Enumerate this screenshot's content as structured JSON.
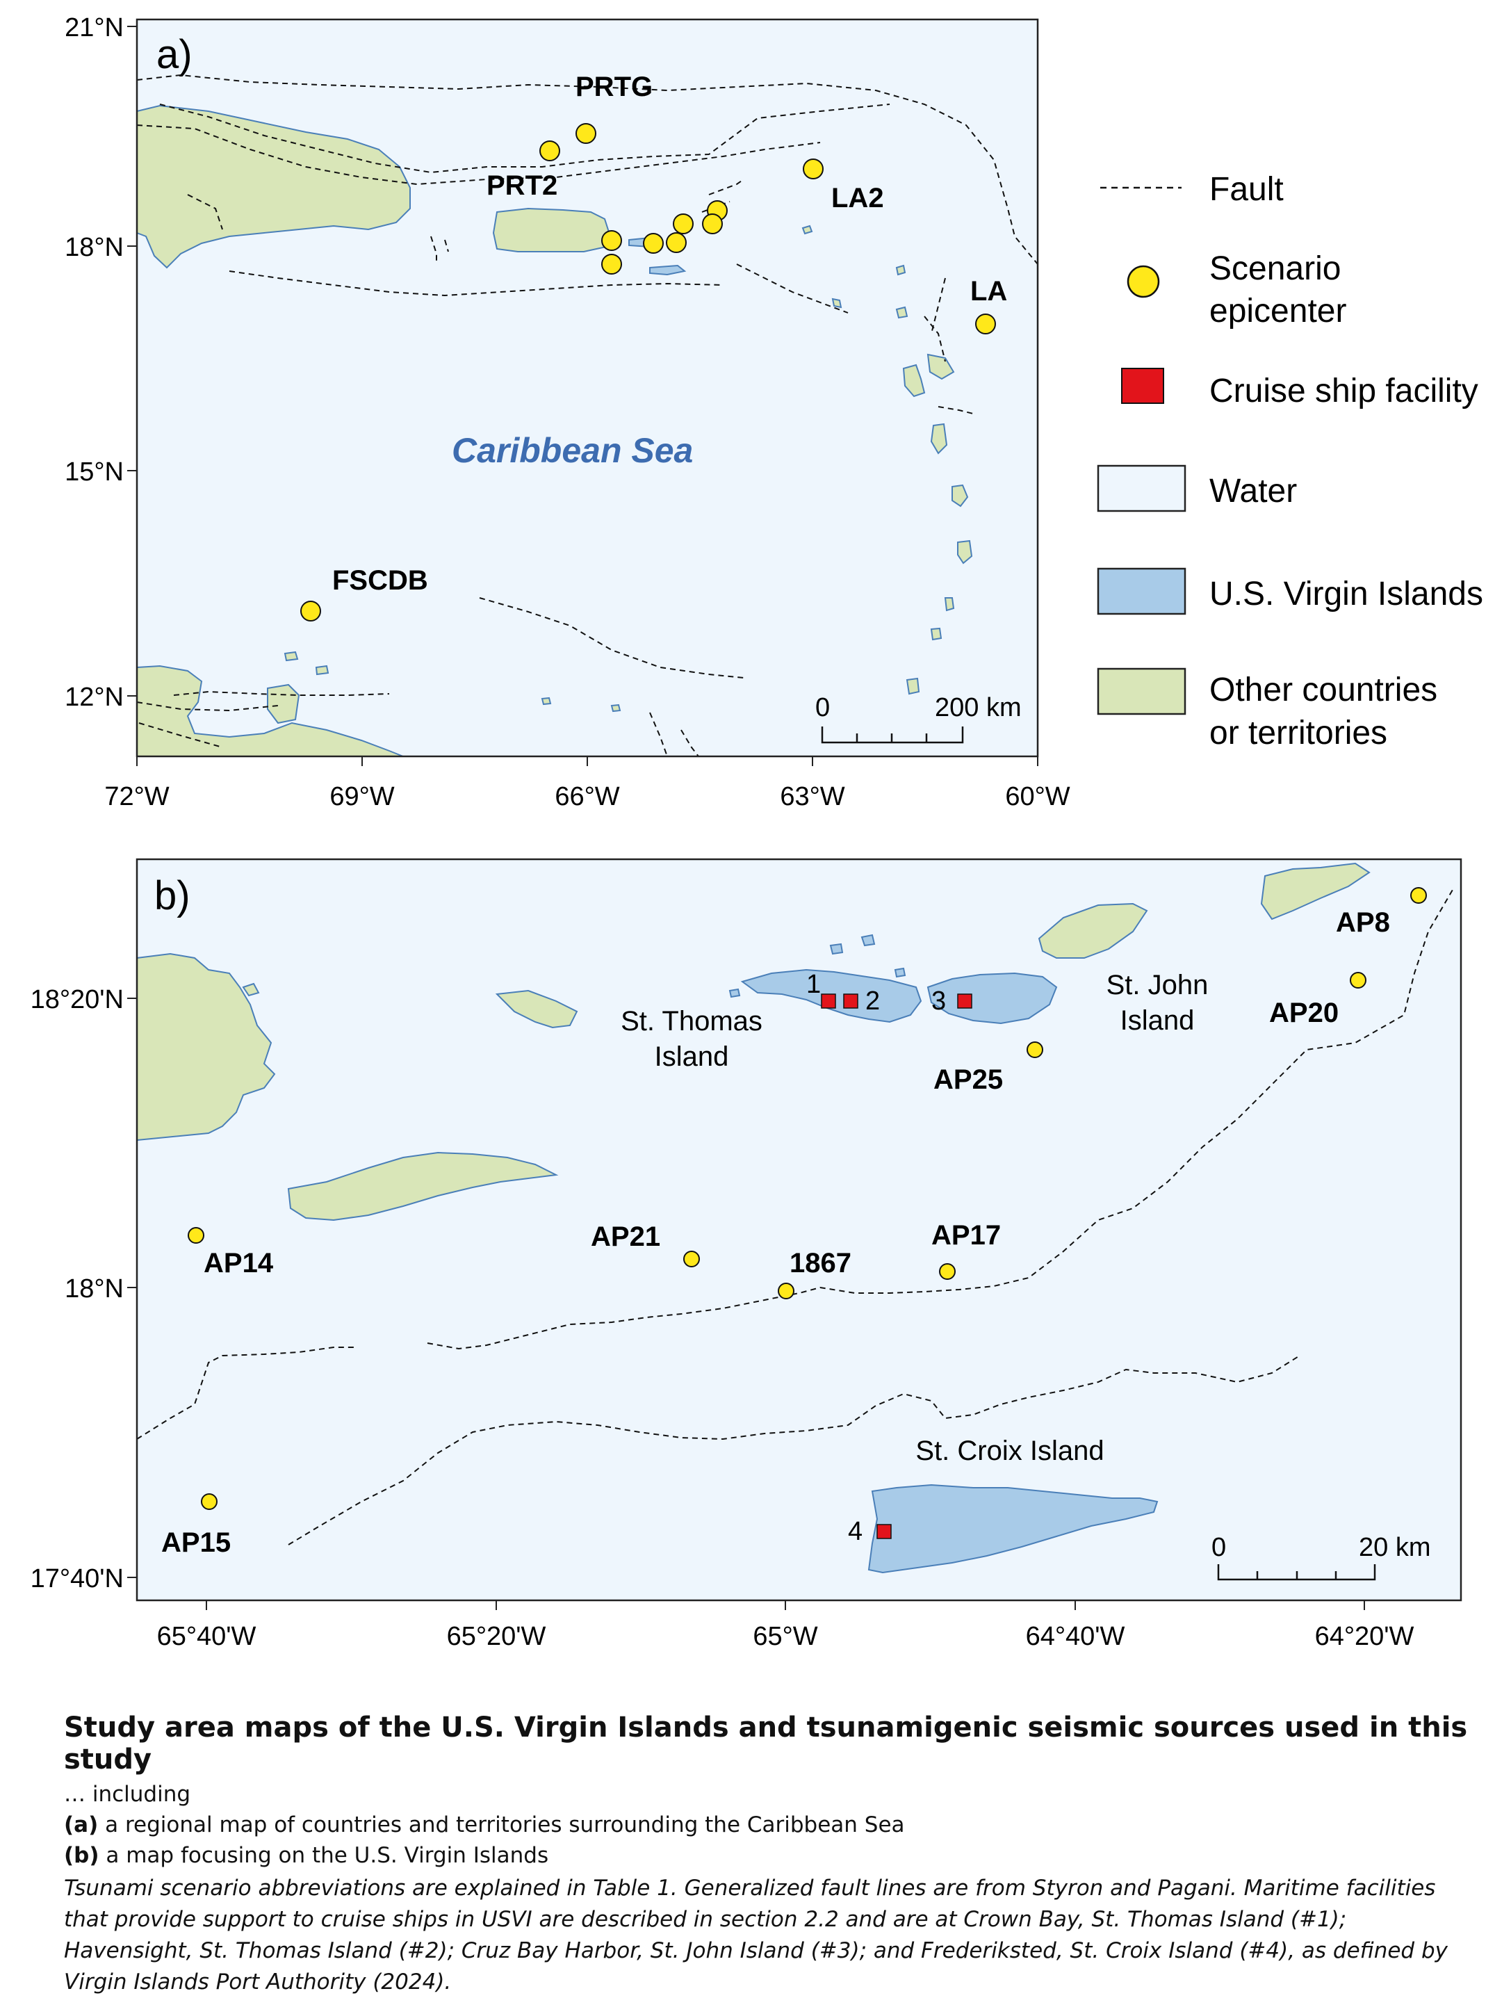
{
  "map_a": {
    "panel_label": "a)",
    "sea_label": "Caribbean Sea",
    "lat_ticks": [
      "21°N",
      "18°N",
      "15°N",
      "12°N"
    ],
    "lon_ticks": [
      "72°W",
      "69°W",
      "66°W",
      "63°W",
      "60°W"
    ],
    "epicenters": [
      "PRTG",
      "PRT2",
      "LA2",
      "LA",
      "FSCDB"
    ],
    "scale_bar": {
      "start": "0",
      "end": "200 km"
    }
  },
  "map_b": {
    "panel_label": "b)",
    "lat_ticks": [
      "18°20'N",
      "18°N",
      "17°40'N"
    ],
    "lon_ticks": [
      "65°40'W",
      "65°20'W",
      "65°W",
      "64°40'W",
      "64°20'W"
    ],
    "epicenters": [
      "AP8",
      "AP20",
      "AP25",
      "AP21",
      "1867",
      "AP17",
      "AP14",
      "AP15"
    ],
    "islands": {
      "st_thomas": [
        "St. Thomas",
        "Island"
      ],
      "st_john": [
        "St. John",
        "Island"
      ],
      "st_croix": "St. Croix Island"
    },
    "facilities": [
      "1",
      "2",
      "3",
      "4"
    ],
    "scale_bar": {
      "start": "0",
      "end": "20 km"
    }
  },
  "legend": {
    "fault": "Fault",
    "epicenter": [
      "Scenario",
      "epicenter"
    ],
    "cruise": "Cruise ship facility",
    "water": "Water",
    "usvi": "U.S. Virgin Islands",
    "other": [
      "Other countries",
      "or territories"
    ]
  },
  "colors": {
    "water": "#eef6fd",
    "usvi": "#a8cbe8",
    "other": "#d9e6b8",
    "coast": "#4a7fb8",
    "epicenter": "#ffe81a",
    "facility": "#e2141b",
    "sea_label": "#3d6cb0"
  },
  "caption": {
    "title": "Study area maps of the U.S. Virgin Islands and tsunamigenic seismic sources used in this study",
    "intro": "… including",
    "item_a_label": "(a)",
    "item_a_text": " a regional map of countries and territories surrounding the Caribbean Sea",
    "item_b_label": "(b)",
    "item_b_text": " a map focusing on the U.S. Virgin Islands",
    "note": "Tsunami scenario abbreviations are explained in Table 1. Generalized fault lines are from Styron and Pagani. Maritime facilities that provide support to cruise ships in USVI are described in section 2.2 and are at Crown Bay, St. Thomas Island (#1); Havensight, St. Thomas Island (#2); Cruz Bay Harbor, St. John Island (#3); and Frederiksted, St. Croix Island (#4), as defined by Virgin Islands Port Authority (2024)."
  }
}
